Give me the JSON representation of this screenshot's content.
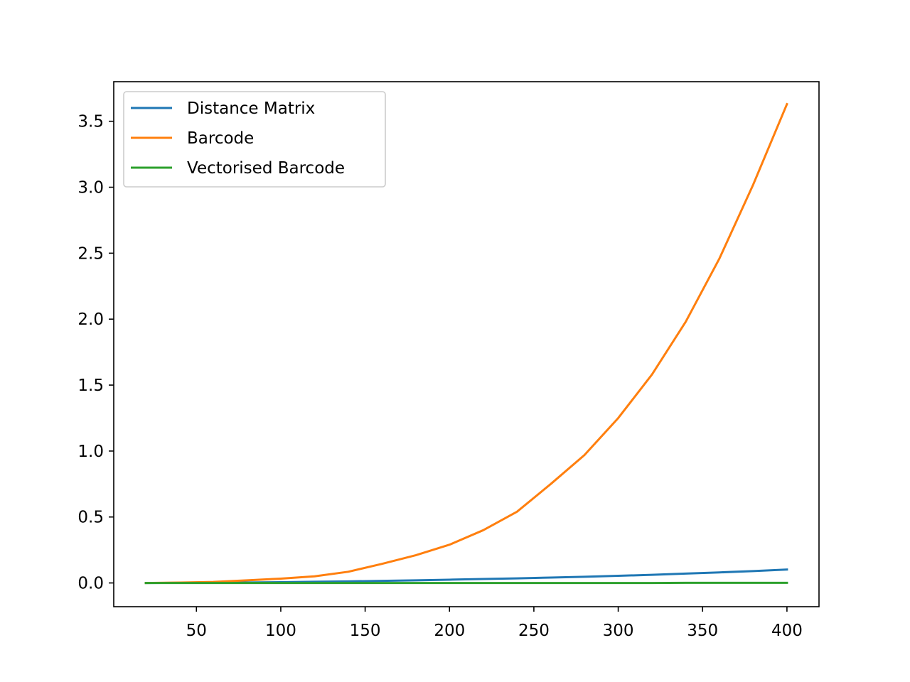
{
  "chart_data": {
    "type": "line",
    "title": "",
    "xlabel": "",
    "ylabel": "",
    "xlim": [
      1,
      419
    ],
    "ylim": [
      -0.18,
      3.8
    ],
    "grid": false,
    "legend_position": "top-left",
    "xticks": [
      50,
      100,
      150,
      200,
      250,
      300,
      350,
      400
    ],
    "xtick_labels": [
      "50",
      "100",
      "150",
      "200",
      "250",
      "300",
      "350",
      "400"
    ],
    "yticks": [
      0.0,
      0.5,
      1.0,
      1.5,
      2.0,
      2.5,
      3.0,
      3.5
    ],
    "ytick_labels": [
      "0.0",
      "0.5",
      "1.0",
      "1.5",
      "2.0",
      "2.5",
      "3.0",
      "3.5"
    ],
    "x": [
      20,
      40,
      60,
      80,
      100,
      120,
      140,
      160,
      180,
      200,
      220,
      240,
      260,
      280,
      300,
      320,
      340,
      360,
      380,
      400
    ],
    "series": [
      {
        "name": "Distance Matrix",
        "color": "#1f77b4",
        "values": [
          0.0,
          0.001,
          0.002,
          0.004,
          0.006,
          0.009,
          0.012,
          0.016,
          0.02,
          0.025,
          0.03,
          0.035,
          0.041,
          0.047,
          0.054,
          0.062,
          0.071,
          0.08,
          0.09,
          0.102
        ]
      },
      {
        "name": "Barcode",
        "color": "#ff7f0e",
        "values": [
          0.0,
          0.003,
          0.008,
          0.02,
          0.033,
          0.05,
          0.085,
          0.145,
          0.21,
          0.29,
          0.4,
          0.54,
          0.75,
          0.97,
          1.25,
          1.58,
          1.98,
          2.46,
          3.02,
          3.63
        ]
      },
      {
        "name": "Vectorised Barcode",
        "color": "#2ca02c",
        "values": [
          0.0,
          0.0,
          0.0,
          0.0,
          0.0,
          0.0,
          0.0,
          0.0,
          0.0,
          0.0,
          0.0,
          0.0,
          0.0,
          0.0,
          0.0,
          0.0,
          0.001,
          0.001,
          0.001,
          0.001
        ]
      }
    ]
  }
}
